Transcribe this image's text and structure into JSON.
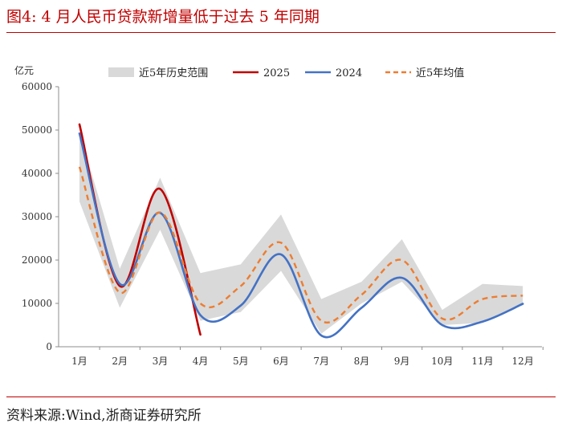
{
  "header": {
    "title": "图4:   4 月人民币贷款新增量低于过去 5 年同期"
  },
  "footer": {
    "source": "资料来源:Wind,浙商证券研究所"
  },
  "chart_data": {
    "type": "line",
    "title": "4 月人民币贷款新增量低于过去 5 年同期",
    "ylabel": "亿元",
    "ylim": [
      0,
      60000
    ],
    "yticks": [
      0,
      10000,
      20000,
      30000,
      40000,
      50000,
      60000
    ],
    "categories": [
      "1月",
      "2月",
      "3月",
      "4月",
      "5月",
      "6月",
      "7月",
      "8月",
      "9月",
      "10月",
      "11月",
      "12月"
    ],
    "legend": [
      "近5年历史范围",
      "2025",
      "2024",
      "近5年均值"
    ],
    "legend_position": "top",
    "grid": false,
    "series": [
      {
        "name": "近5年历史范围",
        "kind": "band",
        "low": [
          33500,
          9000,
          27000,
          6000,
          8000,
          17500,
          3000,
          10000,
          15000,
          5000,
          5500,
          10000
        ],
        "high": [
          49500,
          18000,
          39000,
          17000,
          19000,
          30500,
          11000,
          15000,
          24800,
          8500,
          14500,
          14000
        ],
        "color": "#d9d9d9"
      },
      {
        "name": "2025",
        "color": "#c00000",
        "values": [
          51300,
          14000,
          36400,
          2800,
          null,
          null,
          null,
          null,
          null,
          null,
          null,
          null
        ]
      },
      {
        "name": "2024",
        "color": "#4472c4",
        "values": [
          49200,
          14500,
          30900,
          7300,
          9500,
          21300,
          2600,
          9000,
          15900,
          5000,
          5800,
          9900
        ]
      },
      {
        "name": "近5年均值",
        "color": "#ed7d31",
        "dashed": true,
        "values": [
          41500,
          12500,
          31000,
          10000,
          14000,
          24000,
          6000,
          12000,
          20000,
          6500,
          11000,
          11800
        ]
      }
    ]
  }
}
